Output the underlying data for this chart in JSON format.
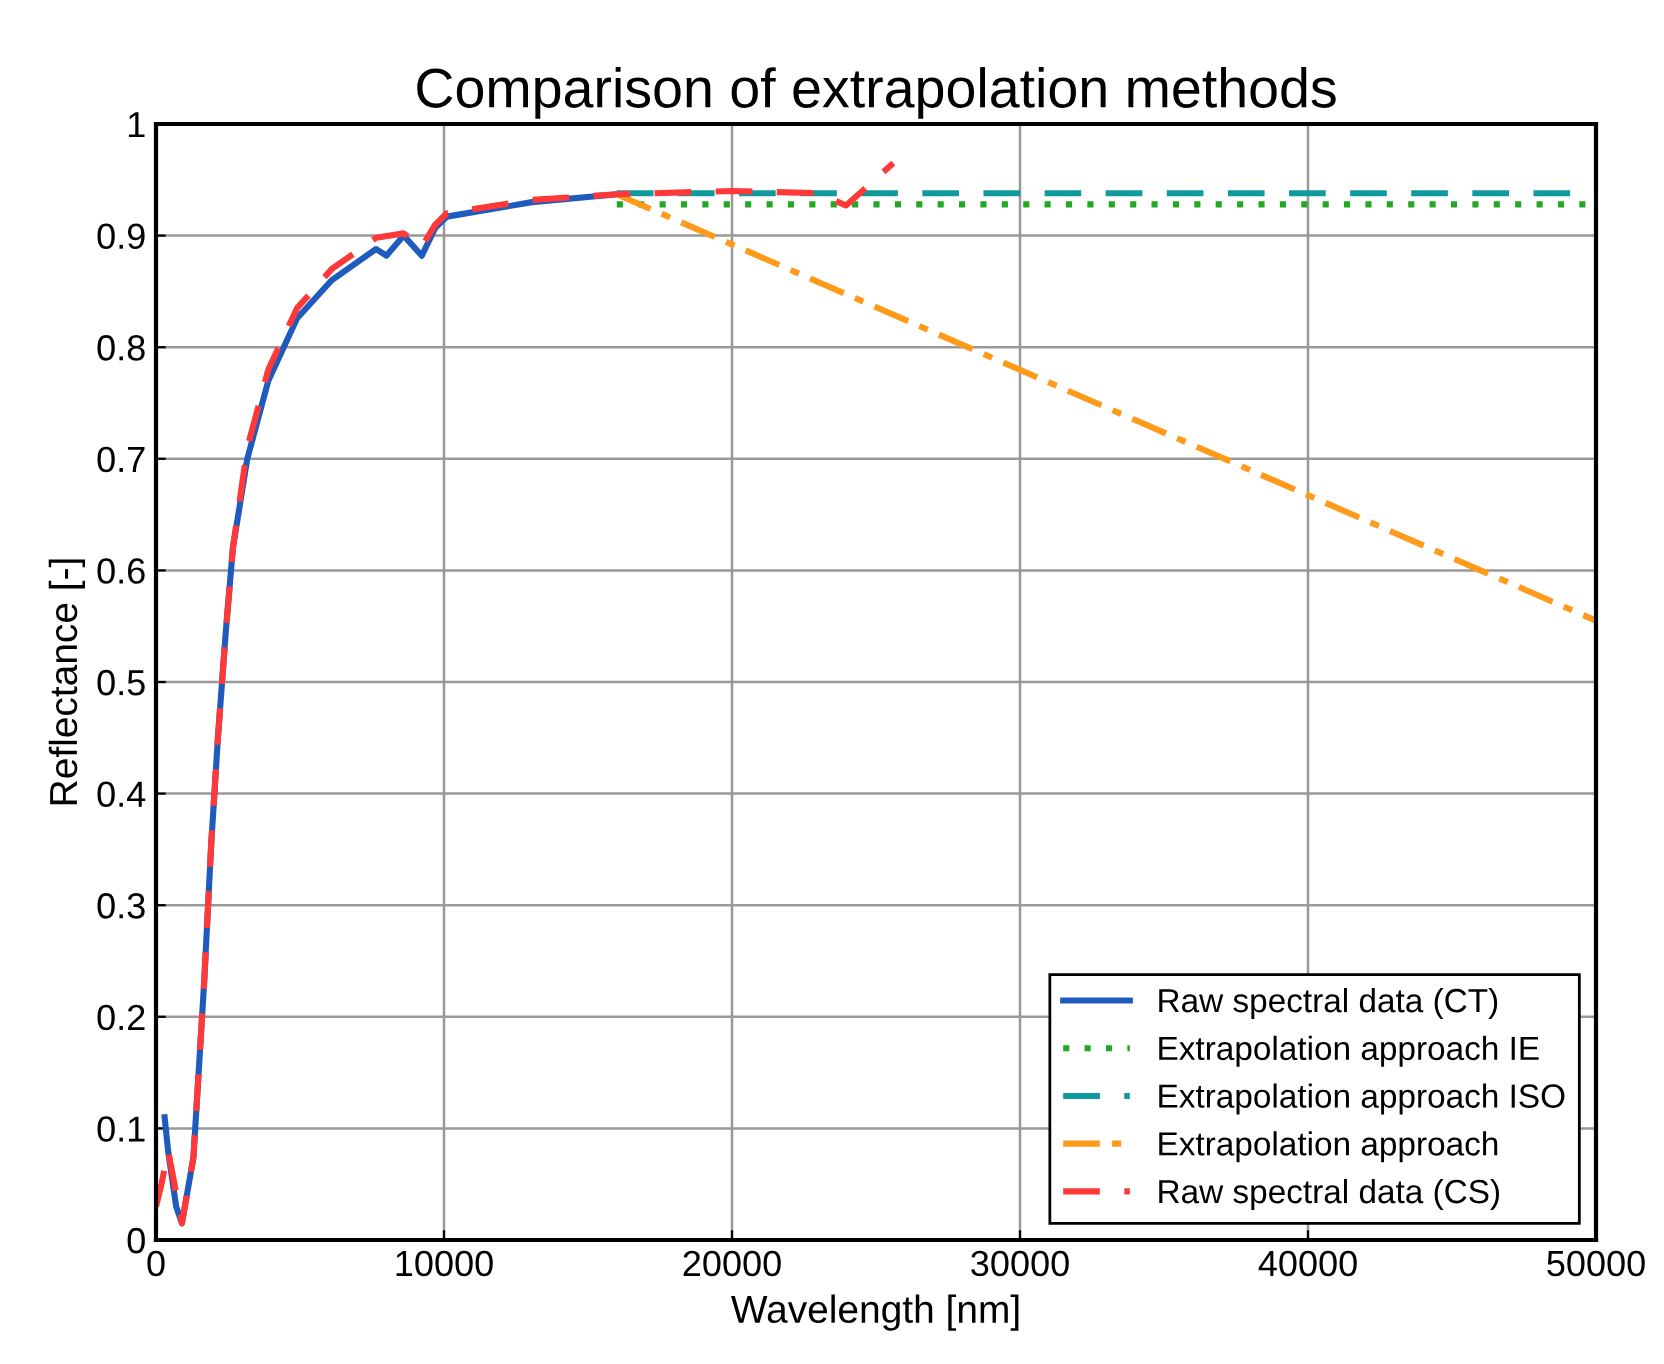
{
  "chart_data": {
    "type": "line",
    "title": "Comparison of extrapolation methods",
    "xlabel": "Wavelength [nm]",
    "ylabel": "Reflectance [-]",
    "xlim": [
      0,
      50000
    ],
    "ylim": [
      0,
      1
    ],
    "xticks": [
      0,
      10000,
      20000,
      30000,
      40000,
      50000
    ],
    "yticks": [
      0,
      0.1,
      0.2,
      0.3,
      0.4,
      0.5,
      0.6,
      0.7,
      0.8,
      0.9,
      1
    ],
    "grid": true,
    "legend": "bottom right",
    "series": [
      {
        "name": "Raw spectral data (CT)",
        "color": "#1f5bbf",
        "line_style": "solid",
        "x": [
          300,
          420,
          700,
          900,
          1300,
          1670,
          1920,
          2150,
          2420,
          2670,
          3170,
          3900,
          4900,
          6100,
          7640,
          8000,
          8600,
          9230,
          9700,
          10100,
          13060,
          16000
        ],
        "values": [
          0.11,
          0.08,
          0.03,
          0.015,
          0.074,
          0.23,
          0.356,
          0.45,
          0.544,
          0.62,
          0.7,
          0.77,
          0.826,
          0.86,
          0.888,
          0.882,
          0.9,
          0.882,
          0.907,
          0.917,
          0.93,
          0.937
        ]
      },
      {
        "name": "Extrapolation approach IE",
        "color": "#22a822",
        "line_style": "dotted",
        "x": [
          16000,
          50000
        ],
        "values": [
          0.928,
          0.928
        ]
      },
      {
        "name": "Extrapolation approach ISO",
        "color": "#119a9e",
        "line_style": "dashed",
        "x": [
          16000,
          50000
        ],
        "values": [
          0.938,
          0.938
        ]
      },
      {
        "name": "Extrapolation approach",
        "color": "#ff9a1a",
        "line_style": "dashdot",
        "x": [
          16000,
          50000
        ],
        "values": [
          0.937,
          0.555
        ]
      },
      {
        "name": "Raw spectral data (CS)",
        "color": "#ff3838",
        "line_style": "dashed",
        "x": [
          0,
          190,
          420,
          900,
          1300,
          1670,
          1920,
          2150,
          2420,
          2670,
          3170,
          3900,
          4900,
          6100,
          7640,
          8600,
          9230,
          9700,
          10100,
          13060,
          16000,
          20000,
          23000,
          23960,
          25600
        ],
        "values": [
          0.03,
          0.05,
          0.08,
          0.015,
          0.074,
          0.23,
          0.356,
          0.45,
          0.544,
          0.62,
          0.71,
          0.78,
          0.835,
          0.87,
          0.898,
          0.902,
          0.89,
          0.91,
          0.92,
          0.932,
          0.937,
          0.94,
          0.938,
          0.927,
          0.965
        ]
      }
    ]
  }
}
